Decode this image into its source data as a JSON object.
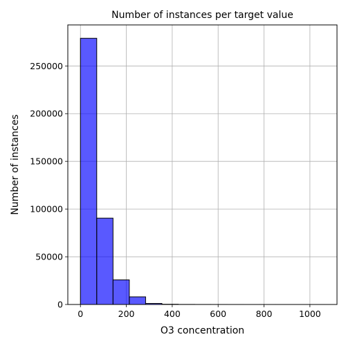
{
  "chart_data": {
    "type": "bar",
    "title": "Number of instances per target value",
    "xlabel": "O3 concentration",
    "ylabel": "Number of instances",
    "bin_edges": [
      0,
      71,
      142,
      213,
      284,
      355,
      426,
      497,
      568,
      639,
      710,
      781,
      852,
      923,
      994,
      1065
    ],
    "values": [
      279000,
      90500,
      25800,
      8000,
      1100,
      250,
      80,
      40,
      20,
      10,
      5,
      5,
      3,
      2,
      2
    ],
    "xlim": [
      -55,
      1118
    ],
    "ylim": [
      0,
      293000
    ],
    "x_ticks": [
      0,
      200,
      400,
      600,
      800,
      1000
    ],
    "y_ticks": [
      0,
      50000,
      100000,
      150000,
      200000,
      250000
    ],
    "x_tick_labels": [
      "0",
      "200",
      "400",
      "600",
      "800",
      "1000"
    ],
    "y_tick_labels": [
      "0",
      "50000",
      "100000",
      "150000",
      "200000",
      "250000"
    ],
    "bar_color": "#0000ff",
    "bar_opacity": 0.65,
    "edge_color": "#000000",
    "grid": true,
    "legend": "none"
  }
}
